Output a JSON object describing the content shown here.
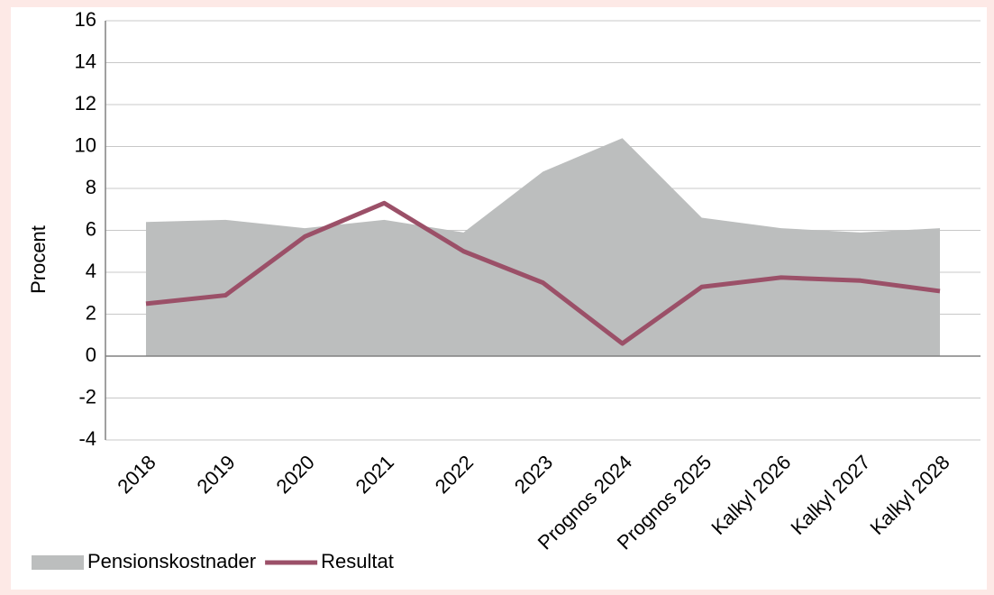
{
  "chart_data": {
    "type": "line",
    "y_label": "Procent",
    "categories": [
      "2018",
      "2019",
      "2020",
      "2021",
      "2022",
      "2023",
      "Prognos 2024",
      "Prognos 2025",
      "Kalkyl 2026",
      "Kalkyl 2027",
      "Kalkyl 2028"
    ],
    "series": [
      {
        "name": "Pensionskostnader",
        "type": "area",
        "color": "#bcbebe",
        "values": [
          6.4,
          6.5,
          6.1,
          6.5,
          5.9,
          8.8,
          10.4,
          6.6,
          6.1,
          5.9,
          6.1
        ]
      },
      {
        "name": "Resultat",
        "type": "line",
        "color": "#9b5068",
        "values": [
          2.5,
          2.9,
          5.7,
          7.3,
          5.0,
          3.5,
          0.6,
          3.3,
          3.75,
          3.6,
          3.1
        ]
      }
    ],
    "ylim": [
      -4,
      16
    ],
    "yticks": [
      -4,
      -2,
      0,
      2,
      4,
      6,
      8,
      10,
      12,
      14,
      16
    ],
    "grid": true,
    "legend": "bottom-left"
  }
}
